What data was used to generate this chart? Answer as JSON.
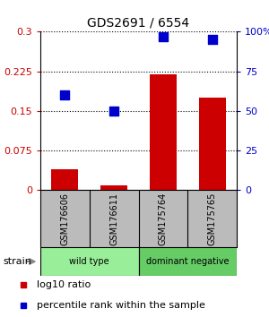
{
  "title": "GDS2691 / 6554",
  "samples": [
    "GSM176606",
    "GSM176611",
    "GSM175764",
    "GSM175765"
  ],
  "log10_ratio": [
    0.04,
    0.01,
    0.22,
    0.175
  ],
  "percentile_rank": [
    60,
    50,
    97,
    95
  ],
  "bar_color": "#cc0000",
  "scatter_color": "#0000cc",
  "left_ylim": [
    0,
    0.3
  ],
  "right_ylim": [
    0,
    100
  ],
  "left_yticks": [
    0,
    0.075,
    0.15,
    0.225,
    0.3
  ],
  "left_yticklabels": [
    "0",
    "0.075",
    "0.15",
    "0.225",
    "0.3"
  ],
  "right_yticks": [
    0,
    25,
    50,
    75,
    100
  ],
  "right_yticklabels": [
    "0",
    "25",
    "50",
    "75",
    "100%"
  ],
  "groups": [
    {
      "label": "wild type",
      "samples": [
        0,
        1
      ],
      "color": "#99ee99"
    },
    {
      "label": "dominant negative",
      "samples": [
        2,
        3
      ],
      "color": "#66cc66"
    }
  ],
  "strain_label": "strain",
  "legend_items": [
    {
      "label": "log10 ratio",
      "color": "#cc0000"
    },
    {
      "label": "percentile rank within the sample",
      "color": "#0000cc"
    }
  ],
  "background_color": "#ffffff",
  "bar_width": 0.55,
  "sample_box_color": "#bbbbbb",
  "marker_size": 55,
  "title_fontsize": 10,
  "tick_fontsize": 8,
  "label_fontsize": 8,
  "legend_fontsize": 8
}
